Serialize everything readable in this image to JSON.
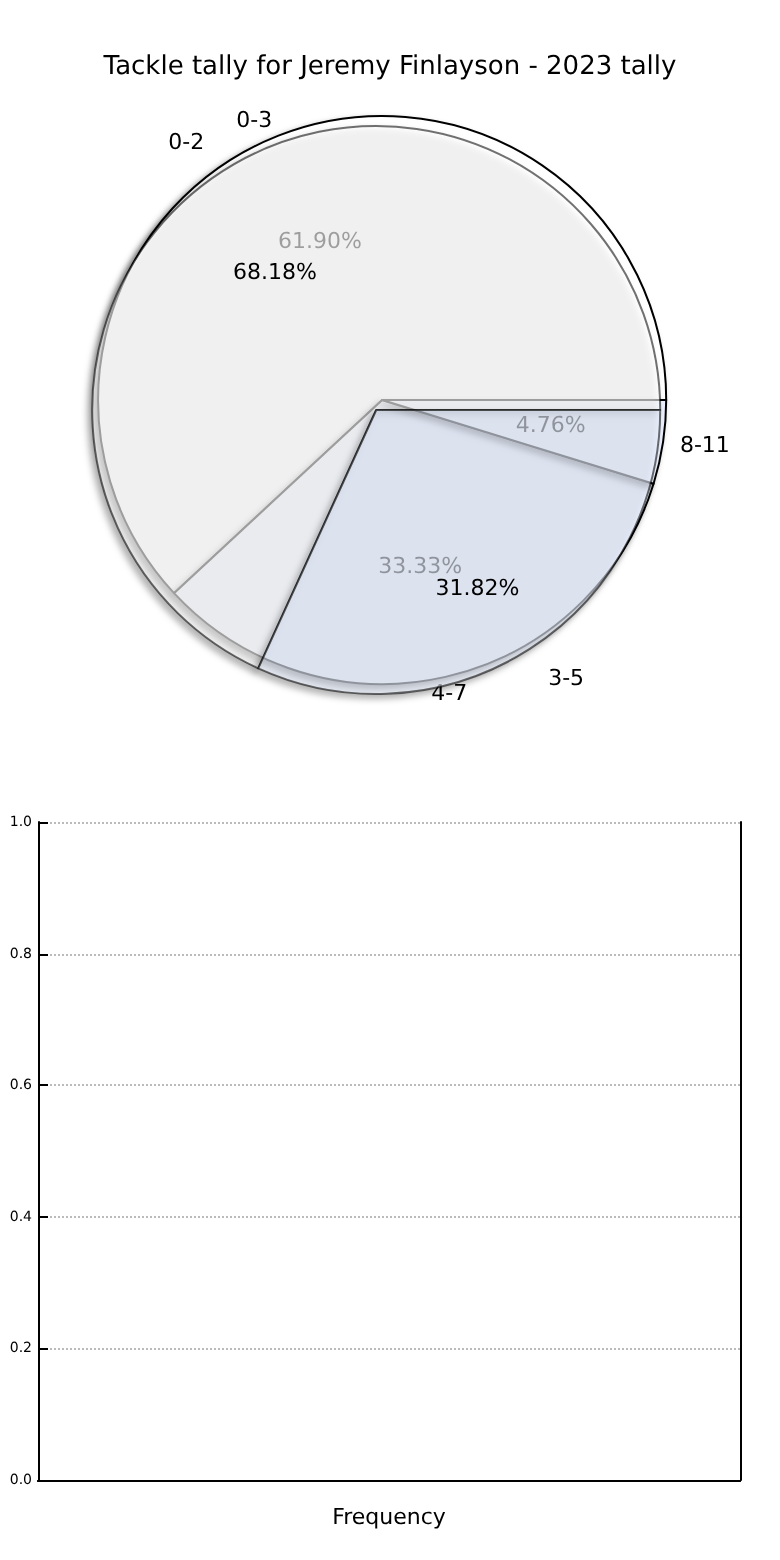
{
  "chart_data": [
    {
      "type": "pie",
      "title": "Tackle tally for Jeremy Finlayson - 2023 tally",
      "categories": [
        "0-3",
        "4-7",
        "8-11"
      ],
      "values": [
        61.9,
        33.33,
        4.76
      ],
      "value_labels": [
        "61.90%",
        "33.33%",
        "4.76%"
      ],
      "colors": [
        "#ffffff",
        "#eaf0fd",
        "#eaf0fd"
      ]
    },
    {
      "type": "pie",
      "categories": [
        "0-2",
        "3-5"
      ],
      "values": [
        68.18,
        31.82
      ],
      "value_labels": [
        "68.18%",
        "31.82%"
      ],
      "colors": [
        "#ffffff",
        "#eaf0fd"
      ]
    },
    {
      "type": "bar",
      "categories": [
        null
      ],
      "values": [
        null
      ],
      "xlabel": "Frequency",
      "ylim": [
        0,
        1
      ],
      "yticks": [
        {
          "value": 0,
          "label": "0.0"
        },
        0.2,
        0.4,
        0.6,
        0.8,
        {
          "value": 1,
          "label": "1.0"
        }
      ],
      "grid": "y",
      "line_style": "dotted"
    }
  ]
}
